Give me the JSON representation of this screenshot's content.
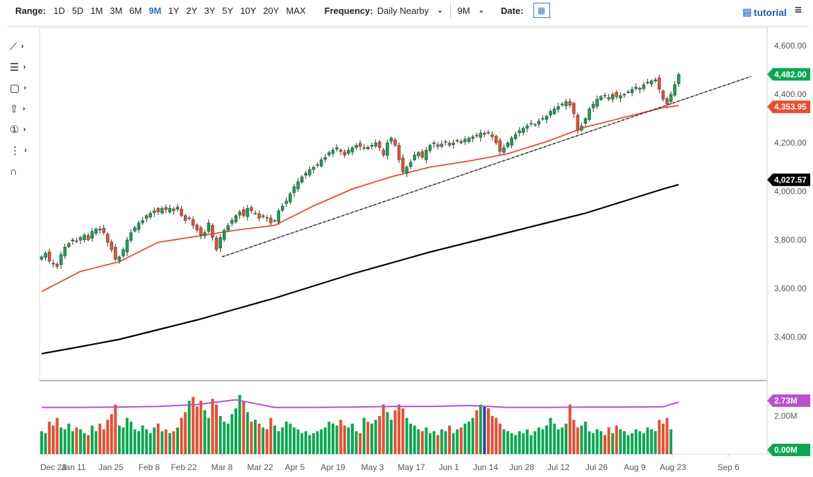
{
  "toolbar": {
    "range_label": "Range:",
    "ranges": [
      "1D",
      "5D",
      "1M",
      "3M",
      "6M",
      "9M",
      "1Y",
      "2Y",
      "3Y",
      "5Y",
      "10Y",
      "20Y",
      "MAX"
    ],
    "active_range": "9M",
    "frequency_label": "Frequency:",
    "frequency_value": "Daily Nearby",
    "period_value": "9M",
    "date_label": "Date:",
    "tutorial_label": "tutorial",
    "icons": {
      "calendar": "calendar-icon",
      "tutorial": "film-icon",
      "menu": "hamburger-icon"
    }
  },
  "tools": [
    {
      "icon": "line-tool-icon",
      "glyph": "⟋"
    },
    {
      "icon": "fib-tool-icon",
      "glyph": "☰"
    },
    {
      "icon": "rectangle-tool-icon",
      "glyph": "▢"
    },
    {
      "icon": "arrow-tool-icon",
      "glyph": "⇧"
    },
    {
      "icon": "number-tool-icon",
      "glyph": "①"
    },
    {
      "icon": "pitchfork-tool-icon",
      "glyph": "⋮"
    },
    {
      "icon": "magnet-icon",
      "glyph": "∩"
    }
  ],
  "chart_data": {
    "type": "candlestick",
    "ylim": [
      3280,
      4680
    ],
    "y_ticks": [
      "3,400.00",
      "3,600.00",
      "3,800.00",
      "4,000.00",
      "4,200.00",
      "4,400.00",
      "4,600.00"
    ],
    "y_tick_values": [
      3400,
      3600,
      3800,
      4000,
      4200,
      4400,
      4600
    ],
    "x_ticks": [
      "Dec 28",
      "Jan 11",
      "Jan 25",
      "Feb 8",
      "Feb 22",
      "Mar 8",
      "Mar 22",
      "Apr 5",
      "Apr 19",
      "May 3",
      "May 17",
      "Jun 1",
      "Jun 14",
      "Jun 28",
      "Jul 12",
      "Jul 26",
      "Aug 9",
      "Aug 23",
      "Sep 6"
    ],
    "closes": [
      3730,
      3745,
      3712,
      3700,
      3690,
      3740,
      3770,
      3785,
      3800,
      3795,
      3810,
      3820,
      3800,
      3835,
      3845,
      3840,
      3830,
      3790,
      3760,
      3720,
      3730,
      3760,
      3800,
      3830,
      3850,
      3870,
      3880,
      3900,
      3910,
      3920,
      3915,
      3930,
      3925,
      3930,
      3920,
      3935,
      3900,
      3880,
      3890,
      3860,
      3840,
      3820,
      3830,
      3870,
      3810,
      3760,
      3810,
      3840,
      3860,
      3880,
      3900,
      3915,
      3900,
      3930,
      3920,
      3910,
      3890,
      3900,
      3890,
      3870,
      3880,
      3920,
      3940,
      3960,
      3990,
      4020,
      4040,
      4060,
      4075,
      4090,
      4100,
      4110,
      4130,
      4140,
      4160,
      4170,
      4180,
      4165,
      4150,
      4170,
      4180,
      4190,
      4185,
      4180,
      4175,
      4190,
      4200,
      4180,
      4150,
      4200,
      4220,
      4190,
      4130,
      4080,
      4100,
      4120,
      4150,
      4160,
      4140,
      4170,
      4190,
      4200,
      4185,
      4195,
      4205,
      4190,
      4200,
      4210,
      4200,
      4215,
      4220,
      4225,
      4230,
      4240,
      4235,
      4240,
      4225,
      4200,
      4165,
      4180,
      4200,
      4220,
      4235,
      4250,
      4260,
      4270,
      4280,
      4275,
      4290,
      4300,
      4310,
      4330,
      4340,
      4350,
      4360,
      4370,
      4355,
      4320,
      4250,
      4270,
      4300,
      4340,
      4360,
      4380,
      4390,
      4395,
      4380,
      4400,
      4390,
      4395,
      4400,
      4410,
      4420,
      4430,
      4425,
      4440,
      4450,
      4455,
      4460,
      4420,
      4380,
      4360,
      4400,
      4440,
      4482
    ],
    "ma_red_samples": [
      3587,
      3670,
      3710,
      3790,
      3815,
      3840,
      3860,
      3940,
      4010,
      4060,
      4100,
      4125,
      4155,
      4205,
      4265,
      4305,
      4345,
      4353.95
    ],
    "ma_black_samples": [
      3331,
      3360,
      3390,
      3430,
      3470,
      3515,
      3560,
      3610,
      3660,
      3705,
      3750,
      3790,
      3830,
      3870,
      3910,
      3960,
      4010,
      4027.57
    ],
    "trendline": {
      "start_price": 3730,
      "end_price": 4474
    },
    "last_price": {
      "value": "4,482.00",
      "color": "#0aa84f"
    },
    "ma_red_label": {
      "value": "4,353.95",
      "color": "#f04a2d"
    },
    "ma_black_label": {
      "value": "4,027.57",
      "color": "#000000"
    },
    "volume": {
      "ylim": [
        0,
        3.5
      ],
      "tick": "2.00M",
      "values": [
        1.2,
        1.1,
        1.7,
        1.5,
        1.9,
        1.4,
        1.3,
        1.6,
        1.2,
        1.4,
        1.3,
        1.1,
        1.0,
        1.5,
        1.2,
        1.6,
        1.3,
        1.8,
        2.1,
        2.6,
        1.5,
        1.4,
        1.9,
        1.7,
        1.3,
        1.2,
        1.5,
        1.3,
        1.1,
        1.4,
        1.6,
        1.2,
        1.3,
        1.1,
        1.2,
        1.4,
        1.9,
        2.2,
        2.8,
        3.0,
        2.5,
        2.8,
        2.3,
        1.9,
        2.9,
        2.6,
        2.0,
        1.7,
        1.6,
        2.1,
        2.4,
        3.1,
        2.8,
        2.2,
        1.7,
        1.8,
        1.6,
        1.4,
        1.3,
        1.9,
        1.5,
        1.2,
        1.4,
        1.7,
        1.6,
        1.4,
        1.3,
        1.1,
        1.2,
        1.0,
        1.1,
        1.2,
        1.3,
        1.4,
        1.7,
        1.6,
        1.5,
        1.8,
        1.5,
        1.4,
        1.6,
        1.2,
        1.1,
        1.9,
        1.7,
        1.6,
        1.8,
        2.0,
        2.6,
        2.2,
        1.8,
        2.3,
        2.6,
        2.4,
        1.9,
        1.6,
        1.5,
        1.3,
        1.2,
        1.4,
        1.1,
        1.2,
        1.0,
        1.3,
        1.2,
        1.5,
        1.1,
        1.3,
        1.4,
        1.6,
        1.7,
        1.9,
        2.3,
        2.6,
        2.5,
        2.4,
        2.0,
        1.9,
        1.6,
        1.3,
        1.2,
        1.1,
        1.0,
        1.2,
        1.1,
        1.3,
        1.0,
        1.2,
        1.4,
        1.3,
        1.5,
        1.9,
        1.6,
        1.3,
        1.4,
        1.6,
        2.6,
        1.8,
        1.4,
        1.5,
        1.7,
        1.2,
        1.1,
        1.3,
        1.2,
        1.0,
        1.4,
        1.1,
        1.5,
        1.3,
        1.2,
        1.0,
        1.1,
        1.3,
        1.2,
        1.1,
        1.4,
        1.3,
        1.2,
        1.8,
        1.6,
        1.9,
        1.3
      ],
      "avg_samples": [
        2.45,
        2.45,
        2.47,
        2.5,
        2.6,
        2.85,
        2.45,
        2.45,
        2.47,
        2.5,
        2.5,
        2.55,
        2.45,
        2.45,
        2.47,
        2.47,
        2.48,
        2.73
      ],
      "avg_label": {
        "value": "2.73M",
        "color": "#b94fd0"
      },
      "zero_label": {
        "value": "0.00M",
        "color": "#0aa84f"
      }
    },
    "colors": {
      "up": "#0aa84f",
      "down": "#f04a2d",
      "highlight": "#2b3ea8",
      "ma_red": "#f04a2d",
      "ma_black": "#000000",
      "avg": "#b94fd0"
    }
  }
}
